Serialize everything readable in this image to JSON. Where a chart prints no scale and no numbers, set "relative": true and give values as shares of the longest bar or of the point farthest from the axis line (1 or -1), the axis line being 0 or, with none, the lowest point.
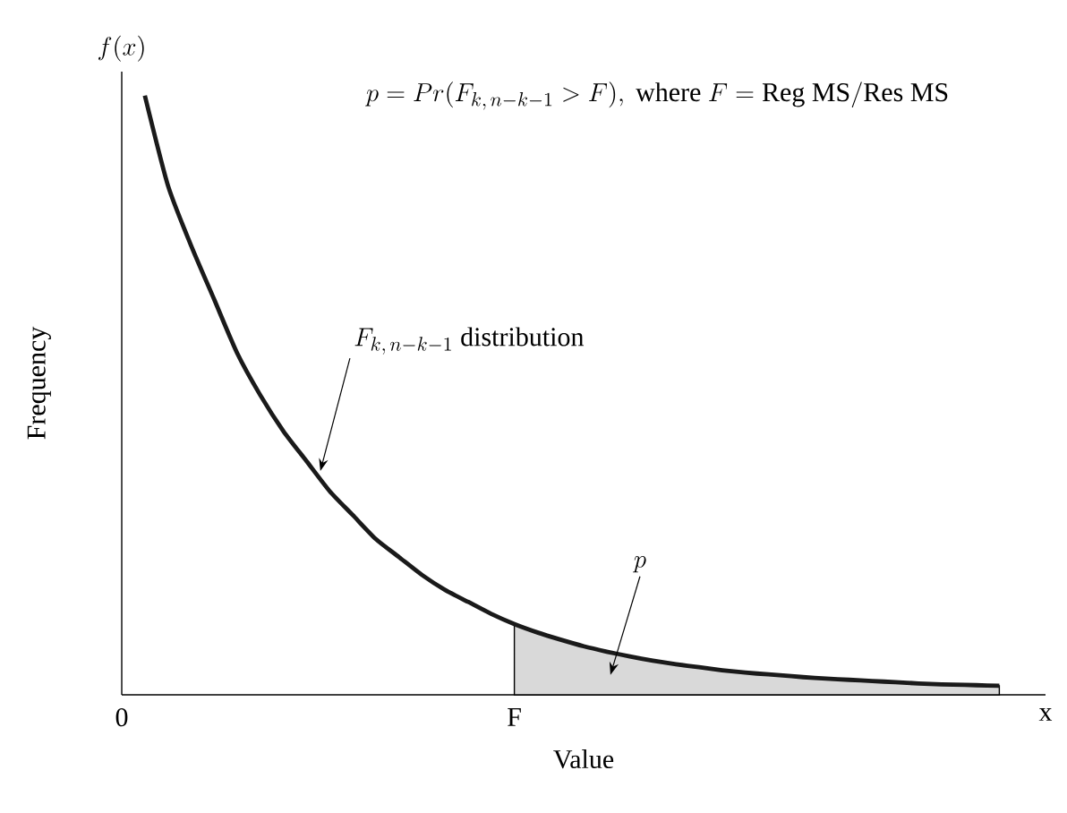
{
  "chart_data": {
    "type": "line",
    "relative": true,
    "xlabel": "Value",
    "ylabel": "Frequency",
    "tick_labels": "x",
    "categories": [
      "0",
      null,
      null,
      null,
      null,
      null,
      null,
      null,
      null,
      null,
      null,
      null,
      null,
      null,
      null,
      null,
      null,
      "F",
      null,
      null,
      null,
      null,
      null,
      null,
      null,
      null,
      null,
      null,
      null,
      null,
      null,
      null,
      null,
      null,
      null,
      null,
      null,
      null,
      null,
      null,
      "x"
    ],
    "annotations": [
      "p = Pr(F_{k,\\, n-k-1} > F),\\ \\mathrm{where}\\ F = \\mathrm{Reg\\ MS/Res\\ MS}",
      "f(x)",
      "F_{k,\\, n-k-1}\\ \\mathrm{distribution}",
      "p"
    ],
    "series": [
      {
        "type": "area",
        "color": "#d9d9d9",
        "values": [
          null,
          null,
          null,
          null,
          null,
          null,
          null,
          null,
          null,
          null,
          null,
          null,
          null,
          null,
          null,
          null,
          null,
          0.118,
          0.104,
          0.092,
          0.081,
          0.072,
          0.064,
          0.057,
          0.051,
          0.046,
          0.041,
          0.037,
          0.034,
          0.031,
          0.028,
          0.026,
          0.024,
          0.022,
          0.02,
          0.018,
          0.017,
          0.016,
          0.015,
          null,
          null
        ]
      },
      {
        "color": "#1a1a1a",
        "values": [
          null,
          1.0,
          0.85,
          0.75,
          0.66,
          0.57,
          0.5,
          0.44,
          0.39,
          0.34,
          0.3,
          0.26,
          0.23,
          0.2,
          0.175,
          0.155,
          0.135,
          0.118,
          0.104,
          0.092,
          0.081,
          0.072,
          0.064,
          0.057,
          0.051,
          0.046,
          0.041,
          0.037,
          0.034,
          0.031,
          0.028,
          0.026,
          0.024,
          0.022,
          0.02,
          0.018,
          0.017,
          0.016,
          0.015,
          null,
          null
        ]
      }
    ]
  }
}
